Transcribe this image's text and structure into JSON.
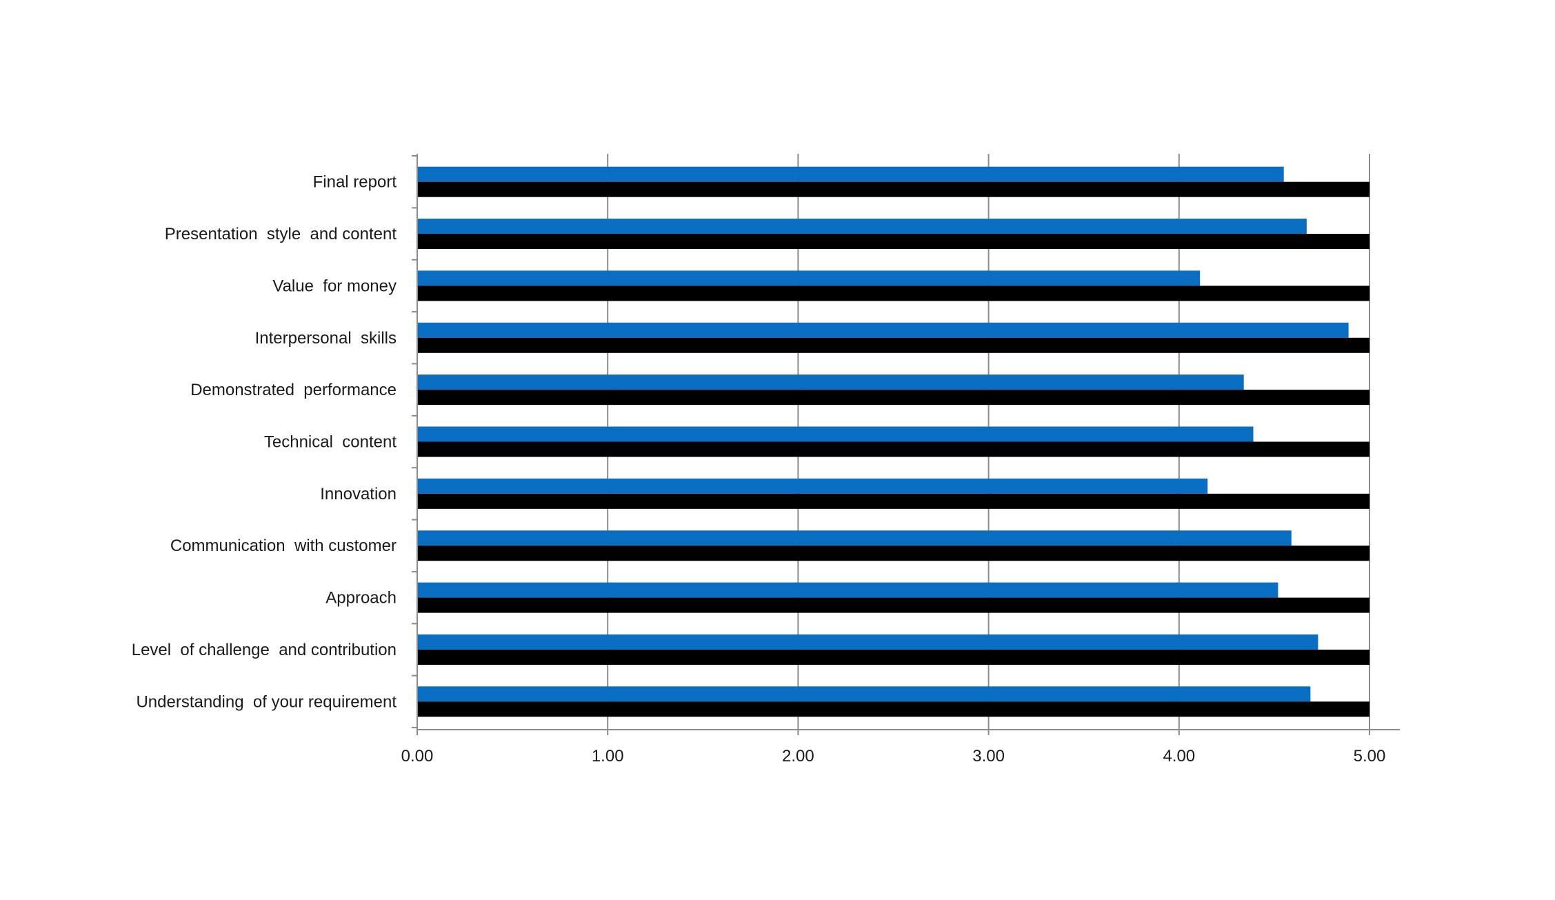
{
  "chart_data": {
    "type": "bar",
    "orientation": "horizontal",
    "categories": [
      "Final report",
      "Presentation  style  and content",
      "Value  for money",
      "Interpersonal  skills",
      "Demonstrated  performance",
      "Technical  content",
      "Innovation",
      "Communication  with customer",
      "Approach",
      "Level  of challenge  and contribution",
      "Understanding  of your requirement"
    ],
    "series": [
      {
        "color": "#0A6FC2",
        "values": [
          4.55,
          4.67,
          4.11,
          4.89,
          4.34,
          4.39,
          4.15,
          4.59,
          4.52,
          4.73,
          4.69
        ]
      },
      {
        "color": "#000000",
        "values": [
          5.0,
          5.0,
          5.0,
          5.0,
          5.0,
          5.0,
          5.0,
          5.0,
          5.0,
          5.0,
          5.0
        ]
      }
    ],
    "xlim": [
      0,
      5
    ],
    "xticks": [
      "0.00",
      "1.00",
      "2.00",
      "3.00",
      "4.00",
      "5.00"
    ],
    "grid": true,
    "legend": "none",
    "title": "",
    "xlabel": "",
    "ylabel": ""
  }
}
